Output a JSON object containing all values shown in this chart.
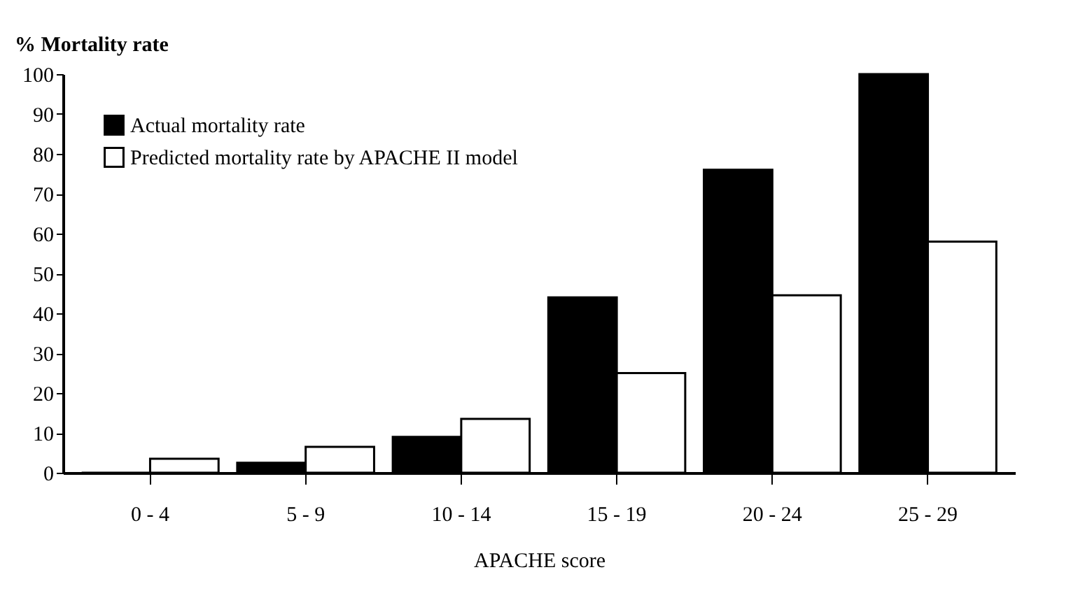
{
  "chart_data": {
    "type": "bar",
    "ylabel": "% Mortality rate",
    "xlabel": "APACHE score",
    "categories": [
      "0 - 4",
      "5 - 9",
      "10 - 14",
      "15 - 19",
      "20 - 24",
      "25 - 29"
    ],
    "series": [
      {
        "name": "Actual mortality rate",
        "color": "#000000",
        "values": [
          0,
          2.5,
          9,
          44,
          76,
          100
        ]
      },
      {
        "name": "Predicted mortality rate by APACHE II model",
        "color": "#ffffff",
        "values": [
          3.5,
          6.5,
          13.5,
          25,
          44.5,
          58
        ]
      }
    ],
    "ylim": [
      0,
      100
    ],
    "yticks": [
      0,
      10,
      20,
      30,
      40,
      50,
      60,
      70,
      80,
      90,
      100
    ],
    "grid": false,
    "legend": "top left"
  }
}
